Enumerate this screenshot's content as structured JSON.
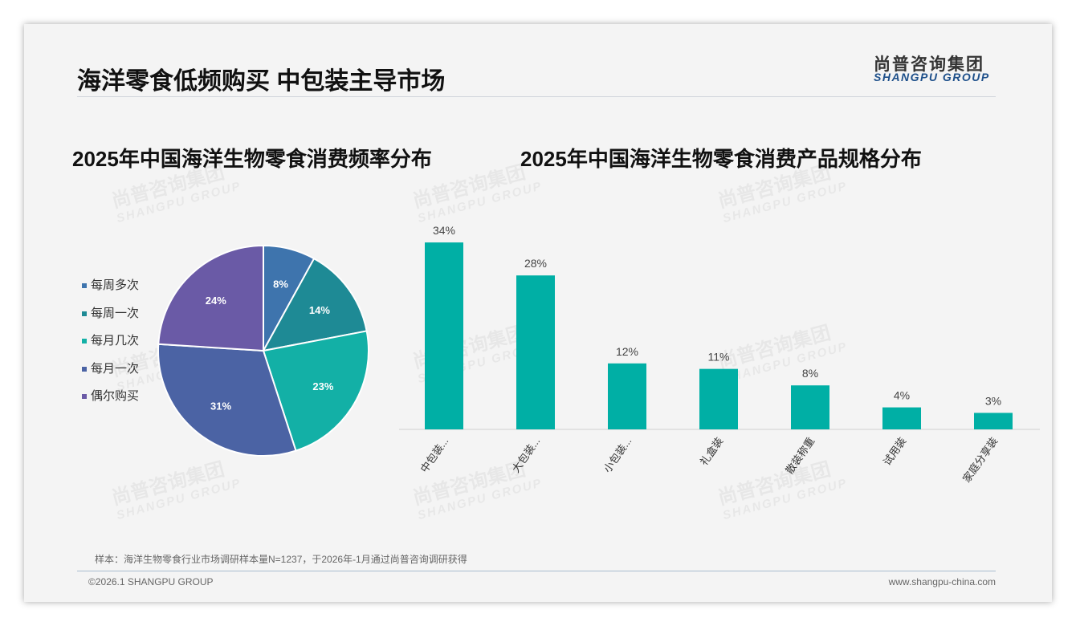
{
  "header": {
    "title": "海洋零食低频购买 中包装主导市场",
    "logo_cn": "尚普咨询集团",
    "logo_en": "SHANGPU GROUP"
  },
  "watermark": {
    "cn": "尚普咨询集团",
    "en": "SHANGPU GROUP"
  },
  "footer": {
    "note": "样本：海洋生物零食行业市场调研样本量N=1237，于2026年-1月通过尚普咨询调研获得",
    "copyright": "©2026.1 SHANGPU GROUP",
    "url": "www.shangpu-china.com"
  },
  "chart_data": [
    {
      "type": "pie",
      "title": "2025年中国海洋生物零食消费频率分布",
      "categories": [
        "每周多次",
        "每周一次",
        "每月几次",
        "每月一次",
        "偶尔购买"
      ],
      "values": [
        8,
        14,
        23,
        31,
        24
      ],
      "labels": [
        "8%",
        "14%",
        "23%",
        "31%",
        "24%"
      ],
      "colors": [
        "#3e74ad",
        "#1e8a95",
        "#13b0a6",
        "#4b63a4",
        "#6a5aa6"
      ],
      "legend": "left"
    },
    {
      "type": "bar",
      "title": "2025年中国海洋生物零食消费产品规格分布",
      "categories": [
        "中包装...",
        "大包装...",
        "小包装...",
        "礼盒装",
        "散装称重",
        "试用装",
        "家庭分享装"
      ],
      "values": [
        34,
        28,
        12,
        11,
        8,
        4,
        3
      ],
      "labels": [
        "34%",
        "28%",
        "12%",
        "11%",
        "8%",
        "4%",
        "3%"
      ],
      "color": "#00afa5",
      "ylim": [
        0,
        34
      ]
    }
  ]
}
